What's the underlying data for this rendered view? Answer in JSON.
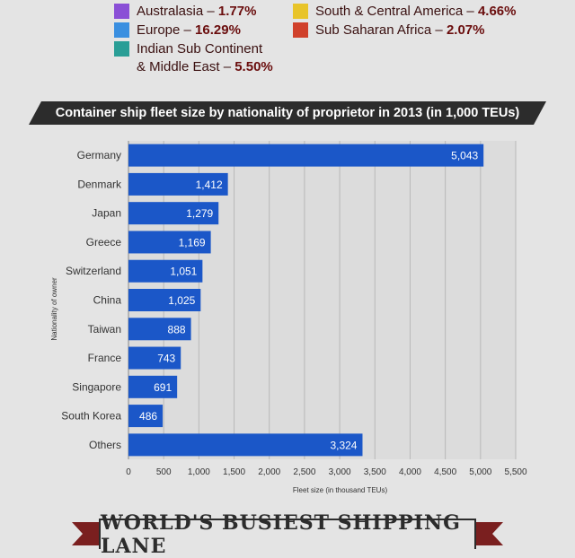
{
  "legend": {
    "australasia": {
      "label": "Australasia – ",
      "value": "1.77%",
      "color": "#8a4fd6"
    },
    "europe": {
      "label": "Europe – ",
      "value": "16.29%",
      "color": "#3a8fe0"
    },
    "indian": {
      "label1": "Indian Sub Continent",
      "label2": "& Middle East – ",
      "value": "5.50%",
      "color": "#2a9e96"
    },
    "south_central": {
      "label": "South & Central America – ",
      "value": "4.66%",
      "color": "#e8c42a"
    },
    "sub_saharan": {
      "label": "Sub Saharan Africa – ",
      "value": "2.07%",
      "color": "#d0402a"
    }
  },
  "banner_title": "Container ship fleet size by nationality of proprietor in 2013 (in 1,000 TEUs)",
  "bottom_title": "WORLD'S BUSIEST SHIPPING LANE",
  "chart_data": {
    "type": "bar",
    "orientation": "horizontal",
    "categories": [
      "Germany",
      "Denmark",
      "Japan",
      "Greece",
      "Switzerland",
      "China",
      "Taiwan",
      "France",
      "Singapore",
      "South Korea",
      "Others"
    ],
    "values": [
      5043,
      1412,
      1279,
      1169,
      1051,
      1025,
      888,
      743,
      691,
      486,
      3324
    ],
    "value_labels": [
      "5,043",
      "1,412",
      "1,279",
      "1,169",
      "1,051",
      "1,025",
      "888",
      "743",
      "691",
      "486",
      "3,324"
    ],
    "xlabel": "Fleet size (in thousand TEUs)",
    "ylabel": "Nationality of owner",
    "xlim": [
      0,
      5500
    ],
    "xticks": [
      0,
      500,
      1000,
      1500,
      2000,
      2500,
      3000,
      3500,
      4000,
      4500,
      5000,
      5500
    ],
    "xtick_labels": [
      "0",
      "500",
      "1,000",
      "1,500",
      "2,000",
      "2,500",
      "3,000",
      "3,500",
      "4,000",
      "4,500",
      "5,000",
      "5,500"
    ],
    "grid": true,
    "bar_color": "#1b57c8"
  }
}
